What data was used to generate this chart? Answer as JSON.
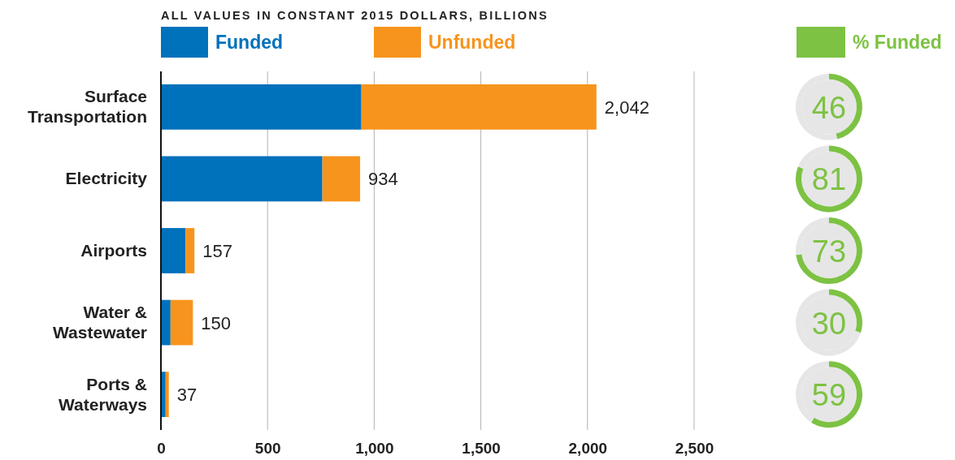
{
  "chart_data": [
    {
      "type": "bar",
      "orientation": "horizontal",
      "stacked": true,
      "title": "ALL VALUES IN CONSTANT 2015 DOLLARS, BILLIONS",
      "categories": [
        "Surface\nTransportation",
        "Electricity",
        "Airports",
        "Water &\nWastewater",
        "Ports &\nWaterways"
      ],
      "series": [
        {
          "name": "Funded",
          "color": "#0071bb",
          "values": [
            940,
            757,
            115,
            45,
            22
          ]
        },
        {
          "name": "Unfunded",
          "color": "#f7941d",
          "values": [
            1102,
            177,
            42,
            105,
            15
          ]
        }
      ],
      "totals": [
        "2,042",
        "934",
        "157",
        "150",
        "37"
      ],
      "xlim": [
        0,
        2500
      ],
      "xticks": [
        0,
        500,
        {
          "value": 1000,
          "label": "1,000"
        },
        {
          "value": 1500,
          "label": "1,500"
        },
        {
          "value": 2000,
          "label": "2,000"
        },
        {
          "value": 2500,
          "label": "2,500"
        }
      ],
      "grid": "x",
      "legend": "top left"
    },
    {
      "type": "donut",
      "categories": [
        "% Funded",
        null
      ],
      "values": [
        46,
        54
      ],
      "colors": [
        "#7dc243",
        "#e6e6e6"
      ],
      "annotations": [
        "46"
      ],
      "legend": "top"
    },
    {
      "type": "donut",
      "categories": [
        null,
        null
      ],
      "values": [
        81,
        19
      ],
      "colors": [
        "#7dc243",
        "#e6e6e6"
      ],
      "annotations": [
        "81"
      ]
    },
    {
      "type": "donut",
      "categories": [
        null,
        null
      ],
      "values": [
        73,
        27
      ],
      "colors": [
        "#7dc243",
        "#e6e6e6"
      ],
      "annotations": [
        "73"
      ]
    },
    {
      "type": "donut",
      "categories": [
        null,
        null
      ],
      "values": [
        30,
        70
      ],
      "colors": [
        "#7dc243",
        "#e6e6e6"
      ],
      "annotations": [
        "30"
      ]
    },
    {
      "type": "donut",
      "categories": [
        null,
        null
      ],
      "values": [
        59,
        41
      ],
      "colors": [
        "#7dc243",
        "#e6e6e6"
      ],
      "annotations": [
        "59"
      ]
    }
  ]
}
